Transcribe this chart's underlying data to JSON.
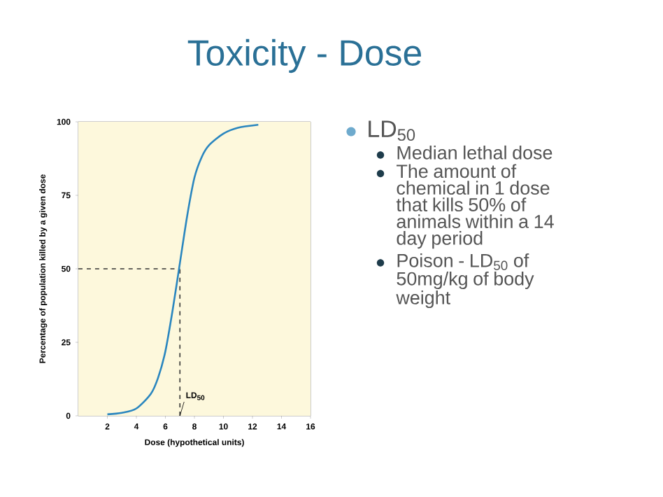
{
  "chart_data": {
    "type": "line",
    "title": "Toxicity - Dose",
    "xlabel": "Dose (hypothetical units)",
    "ylabel": "Percentage of population killed by a given dose",
    "series": [
      {
        "color": "#2a86bf",
        "x": [
          2,
          3,
          4,
          5,
          5.5,
          6,
          6.5,
          7,
          7.5,
          8,
          8.5,
          9,
          10,
          11,
          12.4
        ],
        "values": [
          0.5,
          1,
          2.5,
          7.5,
          13,
          22,
          36,
          52,
          68,
          81,
          88,
          92,
          96,
          98,
          99
        ]
      }
    ],
    "xlim": [
      0,
      16
    ],
    "ylim": [
      0,
      100
    ],
    "xticks": [
      2,
      4,
      6,
      8,
      10,
      12,
      14,
      16
    ],
    "yticks": [
      0,
      25,
      50,
      75,
      100
    ],
    "ref_lines": [
      {
        "axis": "y",
        "value": 50,
        "line_style": "dashed",
        "color": "#333333"
      },
      {
        "axis": "x",
        "value": 7,
        "line_style": "dashed",
        "color": "#333333"
      }
    ],
    "annotations": [
      {
        "text": "LD$_{50}$",
        "x": 7,
        "y": 0
      },
      "LD$_{50}$",
      "Median lethal dose",
      "The amount of chemical in 1 dose that kills 50% of animals within a 14 day period",
      "Poison - LD$_{50}$ of 50mg/kg of body weight"
    ]
  }
}
